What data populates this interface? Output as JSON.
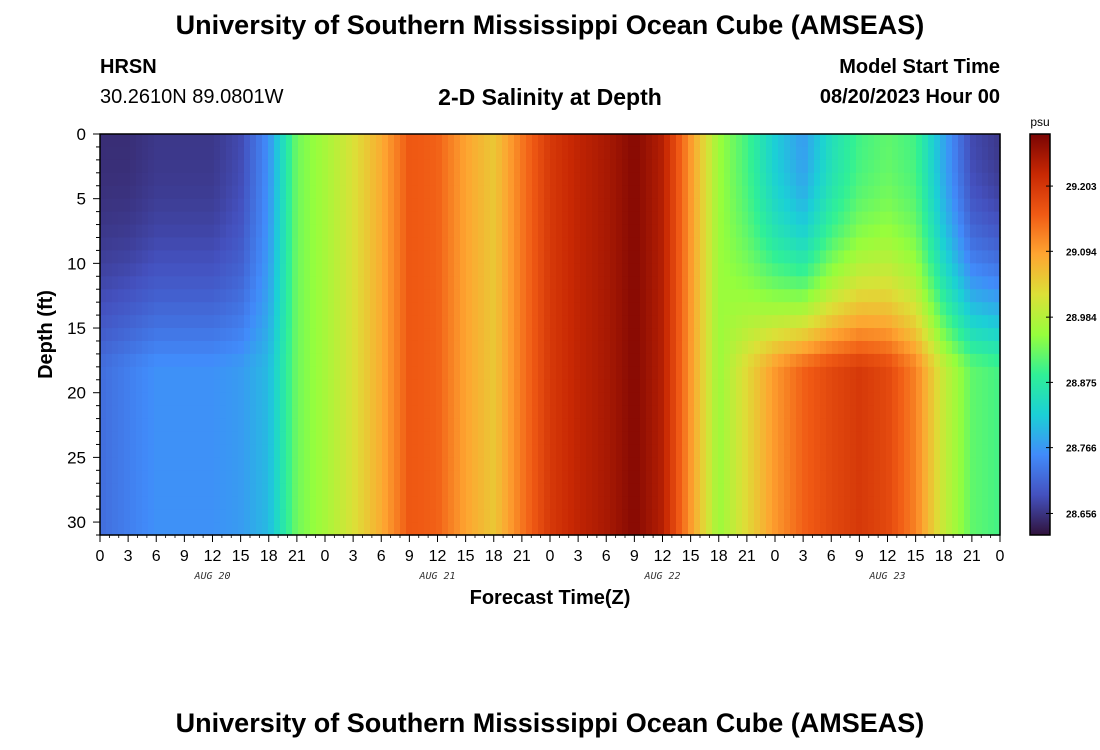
{
  "title": "University of Southern Mississippi Ocean Cube (AMSEAS)",
  "footer_title": "University of Southern Mississippi Ocean Cube (AMSEAS)",
  "station": {
    "name": "HRSN",
    "coords": "30.2610N  89.0801W"
  },
  "model_start": {
    "label": "Model Start Time",
    "value": "08/20/2023 Hour 00"
  },
  "chart_data": {
    "type": "heatmap",
    "title": "2-D Salinity at Depth",
    "xlabel": "Forecast Time(Z)",
    "ylabel": "Depth (ft)",
    "x_start": "2023-08-20T00Z",
    "x_end": "2023-08-24T00Z",
    "x_tick_labels": [
      "0",
      "3",
      "6",
      "9",
      "12",
      "15",
      "18",
      "21",
      "0",
      "3",
      "6",
      "9",
      "12",
      "15",
      "18",
      "21",
      "0",
      "3",
      "6",
      "9",
      "12",
      "15",
      "18",
      "21",
      "0",
      "3",
      "6",
      "9",
      "12",
      "15",
      "18",
      "21",
      "0"
    ],
    "date_labels": [
      "AUG 20",
      "AUG 21",
      "AUG 22",
      "AUG 23"
    ],
    "ylim": [
      0,
      31
    ],
    "y_ticks": [
      0,
      5,
      10,
      15,
      20,
      25,
      30
    ],
    "colorbar": {
      "unit": "psu",
      "range": [
        28.62,
        29.29
      ],
      "ticks": [
        28.656,
        28.766,
        28.875,
        28.984,
        29.094,
        29.203
      ]
    },
    "surface_profile": [
      [
        0,
        28.65
      ],
      [
        3,
        28.65
      ],
      [
        6,
        28.66
      ],
      [
        9,
        28.66
      ],
      [
        12,
        28.66
      ],
      [
        15,
        28.68
      ],
      [
        18,
        28.76
      ],
      [
        21,
        28.93
      ],
      [
        24,
        28.97
      ],
      [
        27,
        29.02
      ],
      [
        30,
        29.08
      ],
      [
        33,
        29.16
      ],
      [
        36,
        29.15
      ],
      [
        39,
        29.09
      ],
      [
        42,
        29.05
      ],
      [
        45,
        29.13
      ],
      [
        48,
        29.2
      ],
      [
        51,
        29.23
      ],
      [
        54,
        29.25
      ],
      [
        57,
        29.28
      ],
      [
        60,
        29.24
      ],
      [
        63,
        29.1
      ],
      [
        66,
        28.96
      ],
      [
        69,
        28.9
      ],
      [
        72,
        28.82
      ],
      [
        75,
        28.77
      ],
      [
        78,
        28.85
      ],
      [
        81,
        28.9
      ],
      [
        84,
        28.92
      ],
      [
        87,
        28.9
      ],
      [
        90,
        28.78
      ],
      [
        93,
        28.68
      ],
      [
        96,
        28.66
      ]
    ],
    "deep_profile": [
      [
        0,
        28.72
      ],
      [
        3,
        28.74
      ],
      [
        6,
        28.76
      ],
      [
        9,
        28.76
      ],
      [
        12,
        28.76
      ],
      [
        15,
        28.77
      ],
      [
        18,
        28.8
      ],
      [
        21,
        28.93
      ],
      [
        24,
        28.97
      ],
      [
        27,
        29.02
      ],
      [
        30,
        29.08
      ],
      [
        33,
        29.16
      ],
      [
        36,
        29.15
      ],
      [
        39,
        29.09
      ],
      [
        42,
        29.05
      ],
      [
        45,
        29.13
      ],
      [
        48,
        29.2
      ],
      [
        51,
        29.23
      ],
      [
        54,
        29.25
      ],
      [
        57,
        29.28
      ],
      [
        60,
        29.24
      ],
      [
        63,
        29.1
      ],
      [
        66,
        28.96
      ],
      [
        69,
        29.03
      ],
      [
        72,
        29.1
      ],
      [
        75,
        29.15
      ],
      [
        78,
        29.18
      ],
      [
        81,
        29.2
      ],
      [
        84,
        29.18
      ],
      [
        87,
        29.12
      ],
      [
        90,
        29.0
      ],
      [
        93,
        28.92
      ],
      [
        96,
        28.9
      ]
    ],
    "surface_layer_depth": 18
  }
}
